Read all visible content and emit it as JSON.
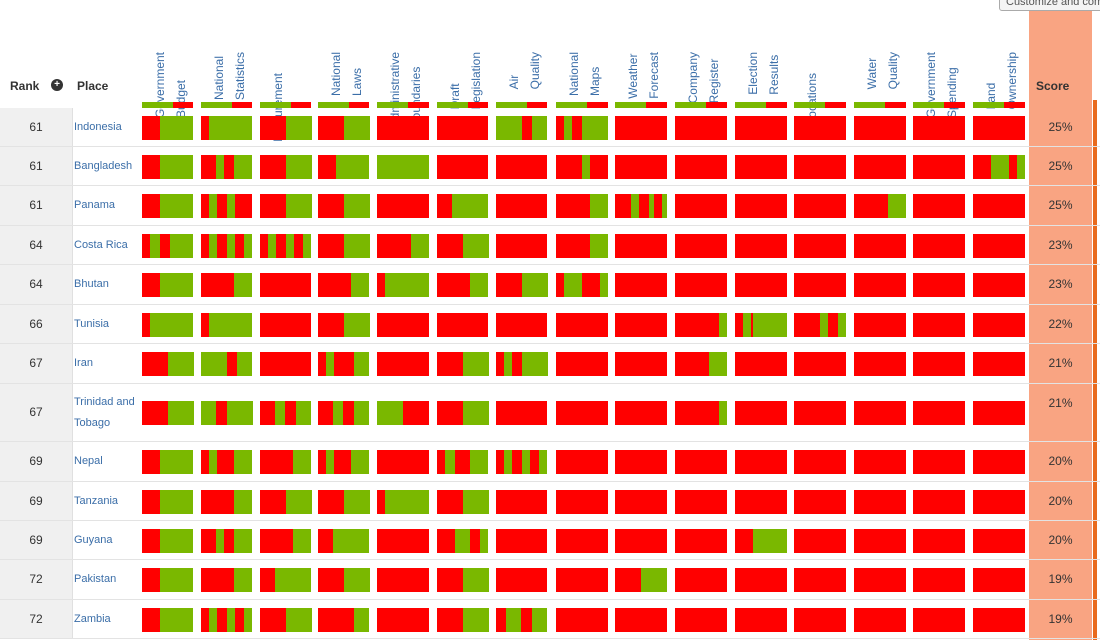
{
  "toolbar": {
    "customize_label": "Customize and compare"
  },
  "header": {
    "rank": "Rank",
    "place": "Place",
    "score": "Score",
    "sort_icon": "plus-circle-icon",
    "columns": [
      "Government\nBudget",
      "National\nStatistics",
      "Procurement",
      "National\nLaws",
      "Administrative\nBoundaries",
      "Draft\nLegislation",
      "Air\nQuality",
      "National\nMaps",
      "Weather\nForecast",
      "Company\nRegister",
      "Election\nResults",
      "Locations",
      "Water\nQuality",
      "Government\nSpending",
      "Land\nOwnership"
    ]
  },
  "colors": {
    "green": "#7ab800",
    "red": "#ff0000",
    "score": "#f9a482",
    "link": "#3b6ea8"
  },
  "rows": [
    {
      "rank": "61",
      "place": "Indonesia",
      "score": "25%"
    },
    {
      "rank": "61",
      "place": "Bangladesh",
      "score": "25%"
    },
    {
      "rank": "61",
      "place": "Panama",
      "score": "25%"
    },
    {
      "rank": "64",
      "place": "Costa Rica",
      "score": "23%"
    },
    {
      "rank": "64",
      "place": "Bhutan",
      "score": "23%"
    },
    {
      "rank": "66",
      "place": "Tunisia",
      "score": "22%"
    },
    {
      "rank": "67",
      "place": "Iran",
      "score": "21%"
    },
    {
      "rank": "67",
      "place": "Trinidad and Tobago",
      "score": "21%"
    },
    {
      "rank": "69",
      "place": "Nepal",
      "score": "20%"
    },
    {
      "rank": "69",
      "place": "Tanzania",
      "score": "20%"
    },
    {
      "rank": "69",
      "place": "Guyana",
      "score": "20%"
    },
    {
      "rank": "72",
      "place": "Pakistan",
      "score": "19%"
    },
    {
      "rank": "72",
      "place": "Zambia",
      "score": "19%"
    }
  ],
  "bars": [
    [
      [
        [
          0.35,
          1
        ]
      ],
      [
        [
          0.15,
          1
        ]
      ],
      [
        [
          0.5,
          1
        ]
      ],
      [
        [
          0.5,
          1
        ]
      ],
      [],
      [],
      [
        [
          0,
          0.5
        ],
        [
          0.7,
          1
        ]
      ],
      [
        [
          0.15,
          0.3
        ],
        [
          0.5,
          1
        ]
      ],
      [],
      [],
      [],
      [],
      [],
      [],
      []
    ],
    [
      [
        [
          0.35,
          1
        ]
      ],
      [
        [
          0.3,
          0.45
        ],
        [
          0.65,
          1
        ]
      ],
      [
        [
          0.5,
          1
        ]
      ],
      [
        [
          0.35,
          1
        ]
      ],
      [
        [
          0,
          1
        ]
      ],
      [],
      [],
      [
        [
          0.5,
          0.65
        ]
      ],
      [],
      [],
      [],
      [],
      [],
      [],
      [
        [
          0.35,
          0.7
        ],
        [
          0.85,
          1
        ]
      ]
    ],
    [
      [
        [
          0.35,
          1
        ]
      ],
      [
        [
          0.15,
          0.3
        ],
        [
          0.5,
          0.65
        ]
      ],
      [
        [
          0.5,
          1
        ]
      ],
      [
        [
          0.5,
          1
        ]
      ],
      [],
      [
        [
          0.3,
          1
        ]
      ],
      [],
      [
        [
          0.65,
          1
        ]
      ],
      [
        [
          0.3,
          0.45
        ],
        [
          0.65,
          0.75
        ],
        [
          0.9,
          1
        ]
      ],
      [],
      [],
      [],
      [
        [
          0.65,
          1
        ]
      ],
      [],
      []
    ],
    [
      [
        [
          0.15,
          0.35
        ],
        [
          0.55,
          1
        ]
      ],
      [
        [
          0.15,
          0.3
        ],
        [
          0.5,
          0.65
        ],
        [
          0.85,
          1
        ]
      ],
      [
        [
          0.15,
          0.3
        ],
        [
          0.5,
          0.65
        ],
        [
          0.85,
          1
        ]
      ],
      [
        [
          0.5,
          1
        ]
      ],
      [
        [
          0.65,
          1
        ]
      ],
      [
        [
          0.5,
          1
        ]
      ],
      [],
      [
        [
          0.65,
          1
        ]
      ],
      [],
      [],
      [],
      [],
      [],
      [],
      []
    ],
    [
      [
        [
          0.35,
          1
        ]
      ],
      [
        [
          0.65,
          1
        ]
      ],
      [],
      [
        [
          0.65,
          1
        ]
      ],
      [
        [
          0.15,
          1
        ]
      ],
      [
        [
          0.65,
          1
        ]
      ],
      [
        [
          0.5,
          1
        ]
      ],
      [
        [
          0.15,
          0.5
        ],
        [
          0.85,
          1
        ]
      ],
      [],
      [],
      [],
      [],
      [],
      [],
      []
    ],
    [
      [
        [
          0.15,
          1
        ]
      ],
      [
        [
          0.15,
          1
        ]
      ],
      [],
      [
        [
          0.5,
          1
        ]
      ],
      [],
      [],
      [],
      [],
      [],
      [
        [
          0.85,
          1
        ]
      ],
      [
        [
          0.15,
          0.3
        ],
        [
          0.35,
          1
        ]
      ],
      [
        [
          0.5,
          0.65
        ],
        [
          0.85,
          1
        ]
      ],
      [],
      [],
      []
    ],
    [
      [
        [
          0.5,
          1
        ]
      ],
      [
        [
          0,
          0.5
        ],
        [
          0.7,
          1
        ]
      ],
      [],
      [
        [
          0.15,
          0.3
        ],
        [
          0.7,
          1
        ]
      ],
      [],
      [
        [
          0.5,
          1
        ]
      ],
      [
        [
          0.15,
          0.3
        ],
        [
          0.5,
          1
        ]
      ],
      [],
      [],
      [
        [
          0.65,
          1
        ]
      ],
      [],
      [],
      [],
      [],
      []
    ],
    [
      [
        [
          0.5,
          1
        ]
      ],
      [
        [
          0,
          0.3
        ],
        [
          0.5,
          1
        ]
      ],
      [
        [
          0.3,
          0.5
        ],
        [
          0.7,
          1
        ]
      ],
      [
        [
          0.3,
          0.5
        ],
        [
          0.7,
          1
        ]
      ],
      [
        [
          0,
          0.5
        ]
      ],
      [
        [
          0.5,
          1
        ]
      ],
      [],
      [],
      [],
      [
        [
          0.85,
          1
        ]
      ],
      [],
      [],
      [],
      [],
      []
    ],
    [
      [
        [
          0.35,
          1
        ]
      ],
      [
        [
          0.15,
          0.3
        ],
        [
          0.65,
          1
        ]
      ],
      [
        [
          0.65,
          1
        ]
      ],
      [
        [
          0.15,
          0.3
        ],
        [
          0.65,
          1
        ]
      ],
      [],
      [
        [
          0.15,
          0.35
        ],
        [
          0.65,
          1
        ]
      ],
      [
        [
          0.15,
          0.3
        ],
        [
          0.5,
          0.65
        ],
        [
          0.85,
          1
        ]
      ],
      [],
      [],
      [],
      [],
      [],
      [],
      [],
      []
    ],
    [
      [
        [
          0.35,
          1
        ]
      ],
      [
        [
          0.65,
          1
        ]
      ],
      [
        [
          0.5,
          1
        ]
      ],
      [
        [
          0.5,
          1
        ]
      ],
      [
        [
          0.15,
          1
        ]
      ],
      [
        [
          0.5,
          1
        ]
      ],
      [],
      [],
      [],
      [],
      [],
      [],
      [],
      [],
      []
    ],
    [
      [
        [
          0.35,
          1
        ]
      ],
      [
        [
          0.3,
          0.45
        ],
        [
          0.65,
          1
        ]
      ],
      [
        [
          0.65,
          1
        ]
      ],
      [
        [
          0.3,
          1
        ]
      ],
      [],
      [
        [
          0.35,
          0.65
        ],
        [
          0.85,
          1
        ]
      ],
      [],
      [],
      [],
      [],
      [
        [
          0.35,
          1
        ]
      ],
      [],
      [],
      [],
      []
    ],
    [
      [
        [
          0.35,
          1
        ]
      ],
      [
        [
          0.65,
          1
        ]
      ],
      [
        [
          0.3,
          1
        ]
      ],
      [
        [
          0.5,
          1
        ]
      ],
      [],
      [
        [
          0.5,
          1
        ]
      ],
      [],
      [],
      [
        [
          0.5,
          1
        ]
      ],
      [],
      [],
      [],
      [],
      [],
      []
    ],
    [
      [
        [
          0.35,
          1
        ]
      ],
      [
        [
          0.15,
          0.3
        ],
        [
          0.5,
          0.65
        ],
        [
          0.85,
          1
        ]
      ],
      [
        [
          0.5,
          1
        ]
      ],
      [
        [
          0.7,
          1
        ]
      ],
      [],
      [
        [
          0.5,
          1
        ]
      ],
      [
        [
          0.2,
          0.5
        ],
        [
          0.7,
          1
        ]
      ],
      [],
      [],
      [],
      [],
      [],
      [],
      [],
      []
    ]
  ]
}
